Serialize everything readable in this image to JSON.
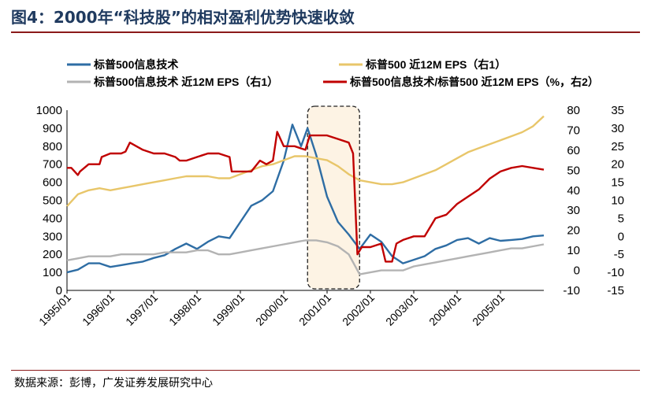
{
  "title": "图4：2000年“科技股”的相对盈利优势快速收敛",
  "source": "数据来源：彭博，广发证券发展研究中心",
  "chart_data": {
    "type": "line",
    "categories": [
      "1995/01",
      "1996/01",
      "1997/01",
      "1998/01",
      "1999/01",
      "2000/01",
      "2001/01",
      "2002/01",
      "2003/01",
      "2004/01",
      "2005/01"
    ],
    "x_range": [
      1995.0,
      2006.0
    ],
    "y_left": {
      "range": [
        0,
        1000
      ],
      "ticks": [
        0,
        100,
        200,
        300,
        400,
        500,
        600,
        700,
        800,
        900,
        1000
      ]
    },
    "y_right1": {
      "range": [
        -10,
        80
      ],
      "ticks": [
        -10,
        0,
        10,
        20,
        30,
        40,
        50,
        60,
        70,
        80
      ]
    },
    "y_right2": {
      "range": [
        -15,
        35
      ],
      "ticks": [
        -15,
        -10,
        -5,
        0,
        5,
        10,
        15,
        20,
        25,
        30,
        35
      ]
    },
    "highlight": {
      "x_start": 2000.55,
      "x_end": 2001.75
    },
    "series": [
      {
        "name": "标普500信息技术",
        "axis": "left",
        "color": "#2e6da4",
        "points": [
          [
            1995.0,
            100
          ],
          [
            1995.25,
            115
          ],
          [
            1995.5,
            150
          ],
          [
            1995.75,
            150
          ],
          [
            1996.0,
            130
          ],
          [
            1996.25,
            140
          ],
          [
            1996.5,
            150
          ],
          [
            1996.75,
            160
          ],
          [
            1997.0,
            180
          ],
          [
            1997.25,
            195
          ],
          [
            1997.5,
            230
          ],
          [
            1997.75,
            260
          ],
          [
            1998.0,
            230
          ],
          [
            1998.25,
            270
          ],
          [
            1998.5,
            300
          ],
          [
            1998.75,
            290
          ],
          [
            1999.0,
            380
          ],
          [
            1999.25,
            470
          ],
          [
            1999.5,
            500
          ],
          [
            1999.75,
            550
          ],
          [
            2000.0,
            720
          ],
          [
            2000.2,
            920
          ],
          [
            2000.4,
            800
          ],
          [
            2000.55,
            900
          ],
          [
            2000.75,
            750
          ],
          [
            2001.0,
            520
          ],
          [
            2001.25,
            380
          ],
          [
            2001.5,
            310
          ],
          [
            2001.75,
            230
          ],
          [
            2002.0,
            310
          ],
          [
            2002.25,
            270
          ],
          [
            2002.5,
            190
          ],
          [
            2002.75,
            150
          ],
          [
            2003.0,
            170
          ],
          [
            2003.25,
            190
          ],
          [
            2003.5,
            230
          ],
          [
            2003.75,
            250
          ],
          [
            2004.0,
            280
          ],
          [
            2004.25,
            290
          ],
          [
            2004.5,
            260
          ],
          [
            2004.75,
            290
          ],
          [
            2005.0,
            275
          ],
          [
            2005.25,
            280
          ],
          [
            2005.5,
            285
          ],
          [
            2005.75,
            300
          ],
          [
            2006.0,
            305
          ]
        ]
      },
      {
        "name": "标普500 近12M EPS（右1）",
        "axis": "right1",
        "color": "#e8c66a",
        "points": [
          [
            1995.0,
            32
          ],
          [
            1995.25,
            38
          ],
          [
            1995.5,
            40
          ],
          [
            1995.75,
            41
          ],
          [
            1996.0,
            40
          ],
          [
            1996.25,
            41
          ],
          [
            1996.5,
            42
          ],
          [
            1996.75,
            43
          ],
          [
            1997.0,
            44
          ],
          [
            1997.25,
            45
          ],
          [
            1997.5,
            46
          ],
          [
            1997.75,
            47
          ],
          [
            1998.0,
            47
          ],
          [
            1998.25,
            47
          ],
          [
            1998.5,
            46
          ],
          [
            1998.75,
            46
          ],
          [
            1999.0,
            48
          ],
          [
            1999.25,
            50
          ],
          [
            1999.5,
            52
          ],
          [
            1999.75,
            53
          ],
          [
            2000.0,
            55
          ],
          [
            2000.25,
            57
          ],
          [
            2000.5,
            57
          ],
          [
            2000.75,
            56
          ],
          [
            2001.0,
            55
          ],
          [
            2001.25,
            52
          ],
          [
            2001.5,
            48
          ],
          [
            2001.75,
            45
          ],
          [
            2002.0,
            44
          ],
          [
            2002.25,
            43
          ],
          [
            2002.5,
            43
          ],
          [
            2002.75,
            44
          ],
          [
            2003.0,
            46
          ],
          [
            2003.25,
            48
          ],
          [
            2003.5,
            50
          ],
          [
            2003.75,
            53
          ],
          [
            2004.0,
            56
          ],
          [
            2004.25,
            59
          ],
          [
            2004.5,
            61
          ],
          [
            2004.75,
            63
          ],
          [
            2005.0,
            65
          ],
          [
            2005.25,
            67
          ],
          [
            2005.5,
            69
          ],
          [
            2005.75,
            72
          ],
          [
            2006.0,
            77
          ]
        ]
      },
      {
        "name": "标普500信息技术 近12M EPS（右1）",
        "axis": "right1",
        "color": "#b3b3b3",
        "points": [
          [
            1995.0,
            5
          ],
          [
            1995.25,
            6
          ],
          [
            1995.5,
            7
          ],
          [
            1995.75,
            7
          ],
          [
            1996.0,
            7
          ],
          [
            1996.25,
            8
          ],
          [
            1996.5,
            8
          ],
          [
            1996.75,
            8
          ],
          [
            1997.0,
            8
          ],
          [
            1997.25,
            9
          ],
          [
            1997.5,
            9
          ],
          [
            1997.75,
            9
          ],
          [
            1998.0,
            10
          ],
          [
            1998.25,
            10
          ],
          [
            1998.5,
            8
          ],
          [
            1998.75,
            8
          ],
          [
            1999.0,
            9
          ],
          [
            1999.25,
            10
          ],
          [
            1999.5,
            11
          ],
          [
            1999.75,
            12
          ],
          [
            2000.0,
            13
          ],
          [
            2000.25,
            14
          ],
          [
            2000.5,
            15
          ],
          [
            2000.75,
            15
          ],
          [
            2001.0,
            14
          ],
          [
            2001.25,
            12
          ],
          [
            2001.5,
            8
          ],
          [
            2001.75,
            -2
          ],
          [
            2002.0,
            -1
          ],
          [
            2002.25,
            0
          ],
          [
            2002.5,
            0
          ],
          [
            2002.75,
            0
          ],
          [
            2003.0,
            2
          ],
          [
            2003.25,
            3
          ],
          [
            2003.5,
            4
          ],
          [
            2003.75,
            5
          ],
          [
            2004.0,
            6
          ],
          [
            2004.25,
            7
          ],
          [
            2004.5,
            8
          ],
          [
            2004.75,
            9
          ],
          [
            2005.0,
            10
          ],
          [
            2005.25,
            11
          ],
          [
            2005.5,
            11
          ],
          [
            2005.75,
            12
          ],
          [
            2006.0,
            13
          ]
        ]
      },
      {
        "name": "标普500信息技术/标普500 近12M EPS（%，右2）",
        "axis": "right2",
        "color": "#c00000",
        "points": [
          [
            1995.0,
            19
          ],
          [
            1995.1,
            19
          ],
          [
            1995.25,
            17
          ],
          [
            1995.3,
            18
          ],
          [
            1995.5,
            20
          ],
          [
            1995.75,
            20
          ],
          [
            1995.8,
            22
          ],
          [
            1996.0,
            23
          ],
          [
            1996.25,
            23
          ],
          [
            1996.35,
            23.5
          ],
          [
            1996.45,
            26
          ],
          [
            1996.6,
            25
          ],
          [
            1996.75,
            24
          ],
          [
            1997.0,
            23
          ],
          [
            1997.25,
            23
          ],
          [
            1997.5,
            22
          ],
          [
            1997.6,
            21
          ],
          [
            1997.75,
            21
          ],
          [
            1998.0,
            22
          ],
          [
            1998.25,
            23
          ],
          [
            1998.5,
            23
          ],
          [
            1998.75,
            22
          ],
          [
            1998.8,
            18
          ],
          [
            1999.0,
            18
          ],
          [
            1999.25,
            18
          ],
          [
            1999.45,
            21
          ],
          [
            1999.6,
            20
          ],
          [
            1999.75,
            21
          ],
          [
            1999.85,
            29
          ],
          [
            2000.0,
            25
          ],
          [
            2000.25,
            25
          ],
          [
            2000.5,
            24
          ],
          [
            2000.6,
            28
          ],
          [
            2000.75,
            28
          ],
          [
            2001.0,
            28
          ],
          [
            2001.25,
            27
          ],
          [
            2001.5,
            26
          ],
          [
            2001.6,
            23
          ],
          [
            2001.7,
            -5
          ],
          [
            2001.8,
            -3
          ],
          [
            2002.0,
            -3
          ],
          [
            2002.25,
            -2
          ],
          [
            2002.35,
            -7
          ],
          [
            2002.5,
            -7
          ],
          [
            2002.6,
            -2
          ],
          [
            2002.75,
            -1
          ],
          [
            2003.0,
            0
          ],
          [
            2003.25,
            0
          ],
          [
            2003.5,
            5
          ],
          [
            2003.75,
            6
          ],
          [
            2004.0,
            9
          ],
          [
            2004.25,
            11
          ],
          [
            2004.5,
            13
          ],
          [
            2004.75,
            16
          ],
          [
            2005.0,
            18
          ],
          [
            2005.25,
            19
          ],
          [
            2005.5,
            19.5
          ],
          [
            2005.75,
            19
          ],
          [
            2006.0,
            18.5
          ]
        ]
      }
    ]
  }
}
